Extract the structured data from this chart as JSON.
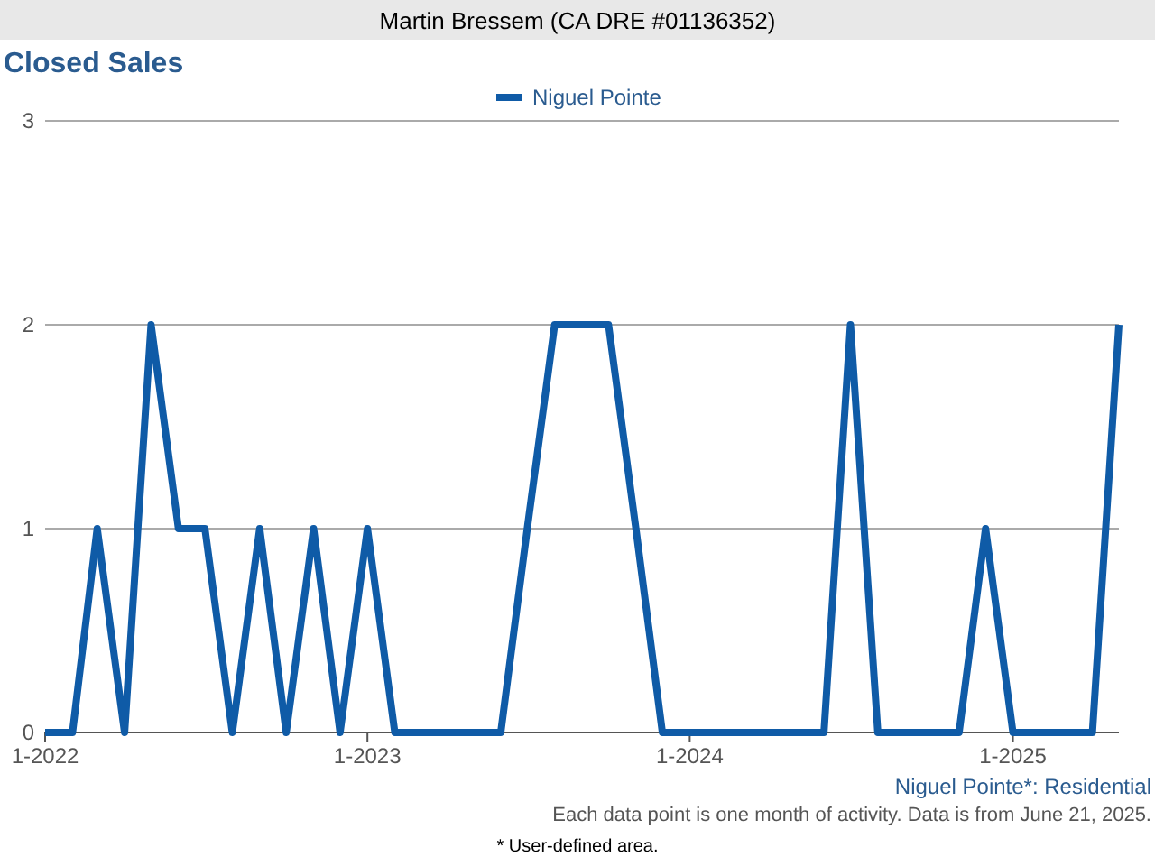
{
  "chart_data": {
    "type": "line",
    "title": "Closed Sales",
    "x": [
      "2022-01",
      "2022-02",
      "2022-03",
      "2022-04",
      "2022-05",
      "2022-06",
      "2022-07",
      "2022-08",
      "2022-09",
      "2022-10",
      "2022-11",
      "2022-12",
      "2023-01",
      "2023-02",
      "2023-03",
      "2023-04",
      "2023-05",
      "2023-06",
      "2023-07",
      "2023-08",
      "2023-09",
      "2023-10",
      "2023-11",
      "2023-12",
      "2024-01",
      "2024-02",
      "2024-03",
      "2024-04",
      "2024-05",
      "2024-06",
      "2024-07",
      "2024-08",
      "2024-09",
      "2024-10",
      "2024-11",
      "2024-12",
      "2025-01",
      "2025-02",
      "2025-03",
      "2025-04",
      "2025-05"
    ],
    "series": [
      {
        "name": "Niguel Pointe",
        "color": "#0f5ba7",
        "values": [
          0,
          0,
          1,
          0,
          2,
          1,
          1,
          0,
          1,
          0,
          1,
          0,
          1,
          0,
          0,
          0,
          0,
          0,
          1,
          2,
          2,
          2,
          1,
          0,
          0,
          0,
          0,
          0,
          0,
          0,
          2,
          0,
          0,
          0,
          0,
          1,
          0,
          0,
          0,
          0,
          2
        ]
      }
    ],
    "xlim": [
      "2022-01",
      "2025-05"
    ],
    "xticks": [
      {
        "value": "2022-01",
        "label": "1-2022"
      },
      {
        "value": "2023-01",
        "label": "1-2023"
      },
      {
        "value": "2024-01",
        "label": "1-2024"
      },
      {
        "value": "2025-01",
        "label": "1-2025"
      }
    ],
    "ylim": [
      0,
      3
    ],
    "yticks": [
      0,
      1,
      2,
      3
    ],
    "grid": "y",
    "legend": "top",
    "marker": "none",
    "line_style": "solid",
    "annotations": [
      "Martin Bressem (CA DRE #01136352)",
      "Niguel Pointe*: Residential",
      "Each data point is one month of activity. Data is from June 21, 2025.",
      "* User-defined area."
    ]
  }
}
